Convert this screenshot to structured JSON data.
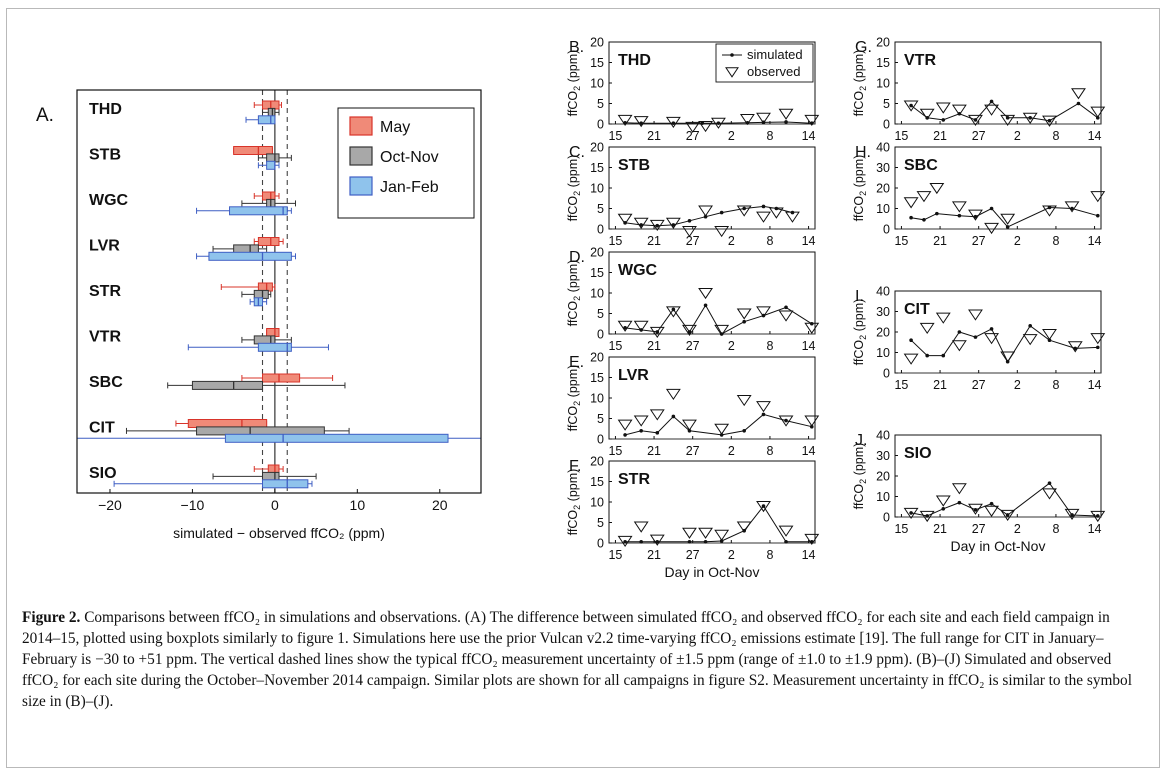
{
  "chart_data": [
    {
      "type": "boxplot",
      "panel_label": "A.",
      "xlabel": "simulated − observed ffCO₂ (ppm)",
      "xlim": [
        -24,
        25
      ],
      "xticks": [
        -20,
        -10,
        0,
        10,
        20
      ],
      "sites": [
        "THD",
        "STB",
        "WGC",
        "LVR",
        "STR",
        "VTR",
        "SBC",
        "CIT",
        "SIO"
      ],
      "reference_lines": {
        "solid": 0,
        "dashed": [
          -1.5,
          1.5
        ]
      },
      "legend": {
        "position": "top-right",
        "entries": [
          "May",
          "Oct-Nov",
          "Jan-Feb"
        ]
      },
      "series": [
        {
          "name": "May",
          "color": "#f08a78",
          "edge": "#d8342a",
          "boxes": [
            {
              "site": "THD",
              "whisker_low": -2.5,
              "q1": -1.5,
              "median": -0.5,
              "q3": 0.5,
              "whisker_high": 0.8
            },
            {
              "site": "STB",
              "whisker_low": -5.0,
              "q1": -5.0,
              "median": -2.0,
              "q3": -0.3,
              "whisker_high": -0.3
            },
            {
              "site": "WGC",
              "whisker_low": -2.5,
              "q1": -1.5,
              "median": -0.5,
              "q3": 0.0,
              "whisker_high": 0.5
            },
            {
              "site": "LVR",
              "whisker_low": -2.5,
              "q1": -2.0,
              "median": -0.5,
              "q3": 0.5,
              "whisker_high": 1.0
            },
            {
              "site": "STR",
              "whisker_low": -6.5,
              "q1": -2.0,
              "median": -1.0,
              "q3": -0.3,
              "whisker_high": 0.0
            },
            {
              "site": "VTR",
              "whisker_low": -1.0,
              "q1": -1.0,
              "median": 0.0,
              "q3": 0.5,
              "whisker_high": 0.5
            },
            {
              "site": "SBC",
              "whisker_low": -4.0,
              "q1": -1.5,
              "median": 0.5,
              "q3": 3.0,
              "whisker_high": 7.0
            },
            {
              "site": "CIT",
              "whisker_low": -12.0,
              "q1": -10.5,
              "median": -4.0,
              "q3": -1.0,
              "whisker_high": -1.0
            },
            {
              "site": "SIO",
              "whisker_low": -2.5,
              "q1": -0.8,
              "median": 0.0,
              "q3": 0.5,
              "whisker_high": 1.0
            }
          ]
        },
        {
          "name": "Oct-Nov",
          "color": "#a8a8a8",
          "edge": "#333333",
          "boxes": [
            {
              "site": "THD",
              "whisker_low": -1.5,
              "q1": -0.8,
              "median": -0.3,
              "q3": 0.0,
              "whisker_high": 0.5
            },
            {
              "site": "STB",
              "whisker_low": -2.0,
              "q1": -1.0,
              "median": 0.0,
              "q3": 0.5,
              "whisker_high": 2.0
            },
            {
              "site": "WGC",
              "whisker_low": -4.0,
              "q1": -1.0,
              "median": -0.5,
              "q3": 0.0,
              "whisker_high": 2.5
            },
            {
              "site": "LVR",
              "whisker_low": -7.5,
              "q1": -5.0,
              "median": -3.0,
              "q3": -2.0,
              "whisker_high": -1.0
            },
            {
              "site": "STR",
              "whisker_low": -4.0,
              "q1": -2.5,
              "median": -1.5,
              "q3": -0.8,
              "whisker_high": -0.5
            },
            {
              "site": "VTR",
              "whisker_low": -4.0,
              "q1": -2.5,
              "median": -0.5,
              "q3": 0.0,
              "whisker_high": 2.0
            },
            {
              "site": "SBC",
              "whisker_low": -13.0,
              "q1": -10.0,
              "median": -5.0,
              "q3": -1.5,
              "whisker_high": 8.5
            },
            {
              "site": "CIT",
              "whisker_low": -18.0,
              "q1": -9.5,
              "median": -3.0,
              "q3": 6.0,
              "whisker_high": 9.0
            },
            {
              "site": "SIO",
              "whisker_low": -7.5,
              "q1": -1.5,
              "median": 0.0,
              "q3": 0.5,
              "whisker_high": 5.0
            }
          ]
        },
        {
          "name": "Jan-Feb",
          "color": "#8fc3ec",
          "edge": "#3f5fc4",
          "boxes": [
            {
              "site": "THD",
              "whisker_low": -3.5,
              "q1": -2.0,
              "median": -0.5,
              "q3": 0.0,
              "whisker_high": 0.0
            },
            {
              "site": "STB",
              "whisker_low": -2.0,
              "q1": -1.0,
              "median": 0.0,
              "q3": 0.0,
              "whisker_high": 0.5
            },
            {
              "site": "WGC",
              "whisker_low": -9.5,
              "q1": -5.5,
              "median": 1.0,
              "q3": 1.5,
              "whisker_high": 2.0
            },
            {
              "site": "LVR",
              "whisker_low": -9.5,
              "q1": -8.0,
              "median": -1.5,
              "q3": 2.0,
              "whisker_high": 2.5
            },
            {
              "site": "STR",
              "whisker_low": -3.0,
              "q1": -2.5,
              "median": -2.0,
              "q3": -1.5,
              "whisker_high": -1.0
            },
            {
              "site": "VTR",
              "whisker_low": -10.5,
              "q1": -2.0,
              "median": 1.5,
              "q3": 2.0,
              "whisker_high": 6.5
            },
            {
              "site": "SBC",
              "whisker_low": null,
              "q1": null,
              "median": null,
              "q3": null,
              "whisker_high": null
            },
            {
              "site": "CIT",
              "whisker_low": -30,
              "q1": -6.0,
              "median": 1.0,
              "q3": 21.0,
              "whisker_high": 51
            },
            {
              "site": "SIO",
              "whisker_low": -19.5,
              "q1": -1.5,
              "median": 1.5,
              "q3": 4.0,
              "whisker_high": 4.5
            }
          ]
        }
      ]
    },
    {
      "type": "line",
      "panel_label": "B.",
      "site": "THD",
      "ylim": [
        0,
        20
      ],
      "yticks": [
        0,
        5,
        10,
        15,
        20
      ],
      "ylabel": "ffCO2 (ppm)",
      "x_tick_labels": [
        "15",
        "21",
        "27",
        "2",
        "8",
        "14"
      ],
      "x_tick_days": [
        0,
        6,
        12,
        18,
        24,
        30
      ],
      "legend": {
        "position": "top-right",
        "entries": [
          "simulated",
          "observed"
        ]
      },
      "simulated": {
        "x": [
          1.5,
          4.0,
          9.0,
          13.5,
          16.0,
          20.5,
          23.0,
          26.5,
          30.5
        ],
        "y": [
          0.3,
          0.2,
          0.2,
          0.2,
          0.2,
          0.3,
          0.4,
          0.5,
          0.2
        ]
      },
      "observed": {
        "x": [
          1.5,
          4.0,
          9.0,
          12.0,
          14.0,
          16.0,
          20.5,
          23.0,
          26.5,
          30.5
        ],
        "y": [
          1.0,
          0.7,
          0.5,
          -0.7,
          -0.5,
          0.3,
          1.2,
          1.5,
          2.5,
          1.0
        ]
      }
    },
    {
      "type": "line",
      "panel_label": "C.",
      "site": "STB",
      "ylim": [
        0,
        20
      ],
      "yticks": [
        0,
        5,
        10,
        15,
        20
      ],
      "ylabel": "ffCO2 (ppm)",
      "x_tick_labels": [
        "15",
        "21",
        "27",
        "2",
        "8",
        "14"
      ],
      "x_tick_days": [
        0,
        6,
        12,
        18,
        24,
        30
      ],
      "simulated": {
        "x": [
          1.5,
          4.0,
          6.5,
          9.0,
          11.5,
          14.0,
          16.5,
          20.0,
          23.0,
          25.0,
          27.5
        ],
        "y": [
          1.5,
          1.0,
          0.8,
          1.0,
          2.0,
          3.0,
          4.0,
          5.0,
          5.5,
          5.0,
          4.0
        ]
      },
      "observed": {
        "x": [
          1.5,
          4.0,
          6.5,
          9.0,
          11.5,
          14.0,
          16.5,
          20.0,
          23.0,
          25.0,
          27.5
        ],
        "y": [
          2.5,
          1.5,
          1.0,
          1.5,
          -0.5,
          4.5,
          -0.5,
          4.5,
          3.0,
          4.0,
          3.0
        ]
      }
    },
    {
      "type": "line",
      "panel_label": "D.",
      "site": "WGC",
      "ylim": [
        0,
        20
      ],
      "yticks": [
        0,
        5,
        10,
        15,
        20
      ],
      "ylabel": "ffCO2 (ppm)",
      "x_tick_labels": [
        "15",
        "21",
        "27",
        "2",
        "8",
        "14"
      ],
      "x_tick_days": [
        0,
        6,
        12,
        18,
        24,
        30
      ],
      "simulated": {
        "x": [
          1.5,
          4.0,
          6.5,
          9.0,
          11.5,
          14.0,
          16.5,
          20.0,
          23.0,
          26.5,
          30.5
        ],
        "y": [
          1.5,
          1.0,
          0.5,
          6.0,
          0.5,
          7.0,
          0.0,
          3.0,
          4.5,
          6.5,
          2.5
        ]
      },
      "observed": {
        "x": [
          1.5,
          4.0,
          6.5,
          9.0,
          11.5,
          14.0,
          16.5,
          20.0,
          23.0,
          26.5,
          30.5
        ],
        "y": [
          2.0,
          2.0,
          0.5,
          5.5,
          1.0,
          10.0,
          1.0,
          5.0,
          5.5,
          4.5,
          1.5
        ]
      }
    },
    {
      "type": "line",
      "panel_label": "E.",
      "site": "LVR",
      "ylim": [
        0,
        20
      ],
      "yticks": [
        0,
        5,
        10,
        15,
        20
      ],
      "ylabel": "ffCO2 (ppm)",
      "x_tick_labels": [
        "15",
        "21",
        "27",
        "2",
        "8",
        "14"
      ],
      "x_tick_days": [
        0,
        6,
        12,
        18,
        24,
        30
      ],
      "simulated": {
        "x": [
          1.5,
          4.0,
          6.5,
          9.0,
          11.5,
          16.5,
          20.0,
          23.0,
          26.5,
          30.5
        ],
        "y": [
          1.0,
          2.0,
          1.5,
          5.5,
          2.0,
          1.0,
          2.0,
          6.0,
          4.5,
          3.0
        ]
      },
      "observed": {
        "x": [
          1.5,
          4.0,
          6.5,
          9.0,
          11.5,
          16.5,
          20.0,
          23.0,
          26.5,
          30.5
        ],
        "y": [
          3.5,
          4.5,
          6.0,
          11.0,
          3.5,
          2.5,
          9.5,
          8.0,
          4.5,
          4.5
        ]
      }
    },
    {
      "type": "line",
      "panel_label": "F.",
      "site": "STR",
      "ylim": [
        0,
        20
      ],
      "yticks": [
        0,
        5,
        10,
        15,
        20
      ],
      "ylabel": "ffCO2 (ppm)",
      "x_tick_labels": [
        "15",
        "21",
        "27",
        "2",
        "8",
        "14"
      ],
      "x_tick_days": [
        0,
        6,
        12,
        18,
        24,
        30
      ],
      "simulated": {
        "x": [
          1.5,
          4.0,
          6.5,
          11.5,
          14.0,
          16.5,
          20.0,
          23.0,
          26.5,
          30.5
        ],
        "y": [
          0.3,
          0.3,
          0.3,
          0.3,
          0.3,
          0.5,
          3.0,
          9.0,
          0.3,
          0.3
        ]
      },
      "observed": {
        "x": [
          1.5,
          4.0,
          6.5,
          11.5,
          14.0,
          16.5,
          20.0,
          23.0,
          26.5,
          30.5
        ],
        "y": [
          0.5,
          4.0,
          0.8,
          2.5,
          2.5,
          2.0,
          4.0,
          9.0,
          3.0,
          1.0
        ]
      }
    },
    {
      "type": "line",
      "panel_label": "G.",
      "site": "VTR",
      "ylim": [
        0,
        20
      ],
      "yticks": [
        0,
        5,
        10,
        15,
        20
      ],
      "ylabel": "ffCO2 (ppm)",
      "x_tick_labels": [
        "15",
        "21",
        "27",
        "2",
        "8",
        "14"
      ],
      "x_tick_days": [
        0,
        6,
        12,
        18,
        24,
        30
      ],
      "simulated": {
        "x": [
          1.5,
          4.0,
          6.5,
          9.0,
          11.5,
          14.0,
          16.5,
          20.0,
          23.0,
          27.5,
          30.5
        ],
        "y": [
          4.5,
          1.5,
          1.0,
          2.5,
          1.0,
          5.5,
          1.5,
          1.5,
          0.8,
          5.0,
          1.5
        ]
      },
      "observed": {
        "x": [
          1.5,
          4.0,
          6.5,
          9.0,
          11.5,
          14.0,
          16.5,
          20.0,
          23.0,
          27.5,
          30.5
        ],
        "y": [
          4.5,
          2.5,
          4.0,
          3.5,
          1.0,
          3.5,
          1.0,
          1.5,
          0.8,
          7.5,
          3.0
        ]
      }
    },
    {
      "type": "line",
      "panel_label": "H.",
      "site": "SBC",
      "ylim": [
        0,
        40
      ],
      "yticks": [
        0,
        10,
        20,
        30,
        40
      ],
      "ylabel": "ffCO2 (ppm)",
      "x_tick_labels": [
        "15",
        "21",
        "27",
        "2",
        "8",
        "14"
      ],
      "x_tick_days": [
        0,
        6,
        12,
        18,
        24,
        30
      ],
      "simulated": {
        "x": [
          1.5,
          3.5,
          5.5,
          9.0,
          11.5,
          14.0,
          16.5,
          23.0,
          26.5,
          30.5
        ],
        "y": [
          5.5,
          4.5,
          7.5,
          6.5,
          6.0,
          10.0,
          1.0,
          10.5,
          10.0,
          6.5
        ]
      },
      "observed": {
        "x": [
          1.5,
          3.5,
          5.5,
          9.0,
          11.5,
          14.0,
          16.5,
          23.0,
          26.5,
          30.5
        ],
        "y": [
          13.0,
          16.0,
          20.0,
          11.0,
          7.0,
          0.5,
          5.0,
          9.0,
          11.0,
          16.0
        ]
      }
    },
    {
      "type": "line",
      "panel_label": "I.",
      "site": "CIT",
      "ylim": [
        0,
        40
      ],
      "yticks": [
        0,
        10,
        20,
        30,
        40
      ],
      "ylabel": "ffCO2 (ppm)",
      "x_tick_labels": [
        "15",
        "21",
        "27",
        "2",
        "8",
        "14"
      ],
      "x_tick_days": [
        0,
        6,
        12,
        18,
        24,
        30
      ],
      "simulated": {
        "x": [
          1.5,
          4.0,
          6.5,
          9.0,
          11.5,
          14.0,
          16.5,
          20.0,
          23.0,
          27.0,
          30.5
        ],
        "y": [
          16.0,
          8.5,
          8.5,
          20.0,
          17.5,
          21.5,
          5.5,
          23.0,
          16.0,
          12.0,
          12.5
        ]
      },
      "observed": {
        "x": [
          1.5,
          4.0,
          6.5,
          9.0,
          11.5,
          14.0,
          16.5,
          20.0,
          23.0,
          27.0,
          30.5
        ],
        "y": [
          7.0,
          22.0,
          27.0,
          13.5,
          28.5,
          17.0,
          8.0,
          16.5,
          19.0,
          13.0,
          17.0
        ]
      }
    },
    {
      "type": "line",
      "panel_label": "J.",
      "site": "SIO",
      "ylim": [
        0,
        40
      ],
      "yticks": [
        0,
        10,
        20,
        30,
        40
      ],
      "ylabel": "ffCO2 (ppm)",
      "xlabel": "Day in Oct-Nov",
      "x_tick_labels": [
        "15",
        "21",
        "27",
        "2",
        "8",
        "14"
      ],
      "x_tick_days": [
        0,
        6,
        12,
        18,
        24,
        30
      ],
      "simulated": {
        "x": [
          1.5,
          4.0,
          6.5,
          9.0,
          11.5,
          14.0,
          16.5,
          23.0,
          26.5,
          30.5
        ],
        "y": [
          2.0,
          0.5,
          4.0,
          7.0,
          3.5,
          6.5,
          1.0,
          16.5,
          1.0,
          0.5
        ]
      },
      "observed": {
        "x": [
          1.5,
          4.0,
          6.5,
          9.0,
          11.5,
          14.0,
          16.5,
          23.0,
          26.5,
          30.5
        ],
        "y": [
          2.0,
          0.5,
          8.0,
          14.0,
          4.0,
          3.0,
          1.0,
          11.5,
          1.5,
          0.5
        ]
      }
    }
  ],
  "bottom_xlabels": {
    "F": "Day in Oct-Nov",
    "J": "Day in Oct-Nov"
  },
  "caption": {
    "label": "Figure 2.",
    "text": "Comparisons between ffCO₂ in simulations and observations. (A) The difference between simulated ffCO₂ and observed ffCO₂ for each site and each field campaign in 2014–15, plotted using boxplots similarly to figure 1. Simulations here use the prior Vulcan v2.2 time-varying ffCO₂ emissions estimate [19]. The full range for CIT in January–February is −30 to +51 ppm. The vertical dashed lines show the typical ffCO₂ measurement uncertainty of ±1.5 ppm (range of ±1.0 to ±1.9 ppm). (B)–(J) Simulated and observed ffCO₂ for each site during the October–November 2014 campaign. Similar plots are shown for all campaigns in figure S2. Measurement uncertainty in ffCO₂ is similar to the symbol size in (B)–(J)."
  }
}
